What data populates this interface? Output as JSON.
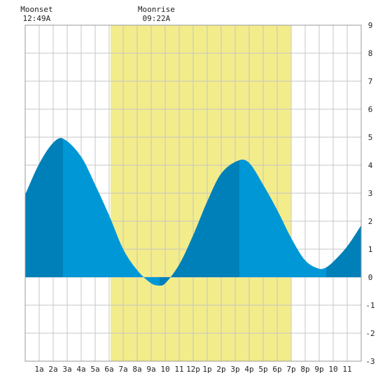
{
  "chart_data": {
    "type": "area",
    "title": "",
    "xlabel": "",
    "ylabel": "",
    "x_tick_labels": [
      "1a",
      "2a",
      "3a",
      "4a",
      "5a",
      "6a",
      "7a",
      "8a",
      "9a",
      "10",
      "11",
      "12p",
      "1p",
      "2p",
      "3p",
      "4p",
      "5p",
      "6p",
      "7p",
      "8p",
      "9p",
      "10",
      "11"
    ],
    "xlim": [
      0,
      24
    ],
    "ylim": [
      -3,
      9
    ],
    "y_ticks": [
      -3,
      -2,
      -1,
      0,
      1,
      2,
      3,
      4,
      5,
      6,
      7,
      8,
      9
    ],
    "grid": true,
    "daylight_hours": [
      6.1,
      18.97
    ],
    "moon_events": [
      {
        "label": "Moonset",
        "time": "12:49A",
        "hour": 0.82
      },
      {
        "label": "Moonrise",
        "time": "09:22A",
        "hour": 9.37
      }
    ],
    "series": [
      {
        "x": [
          0,
          1,
          2,
          2.7,
          4,
          5,
          6,
          7,
          8,
          9,
          9.6,
          10,
          11,
          12,
          13,
          14,
          15.3,
          16,
          17,
          18,
          19,
          20,
          21,
          21.5,
          22,
          23,
          24
        ],
        "values": [
          2.95,
          4.05,
          4.8,
          4.95,
          4.3,
          3.3,
          2.2,
          1.0,
          0.25,
          -0.22,
          -0.3,
          -0.22,
          0.45,
          1.5,
          2.7,
          3.7,
          4.18,
          4.08,
          3.3,
          2.4,
          1.4,
          0.6,
          0.3,
          0.35,
          0.55,
          1.1,
          1.85
        ]
      }
    ],
    "shade_dark_ranges": [
      [
        0,
        2.7
      ],
      [
        9.6,
        15.3
      ],
      [
        21.5,
        24
      ]
    ],
    "colors": {
      "day": "#f3ec8a",
      "tide": "#0097d6",
      "tide_dark": "#0080b8",
      "grid": "#c6c6c6",
      "axis_text": "#222222"
    }
  }
}
